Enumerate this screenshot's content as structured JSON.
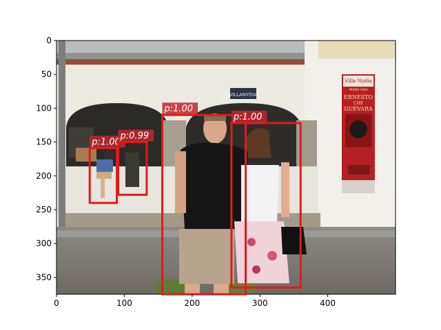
{
  "figure": {
    "image_size": [
      500,
      375
    ],
    "photo_description_tokens": {
      "building_sign": "VILLANYDIA",
      "poster_title": "Villa Nydia",
      "poster_line1": "MUSEO CASA",
      "poster_line2": "de",
      "poster_line3": "ERNESTO",
      "poster_line4": "CHE",
      "poster_line5": "GUEVARA"
    },
    "x_ticks": [
      "0",
      "100",
      "200",
      "300",
      "400"
    ],
    "y_ticks": [
      "0",
      "50",
      "100",
      "150",
      "200",
      "250",
      "300",
      "350"
    ]
  },
  "detections": [
    {
      "label": "p:1.00",
      "bbox_data": [
        49,
        159,
        89,
        240
      ]
    },
    {
      "label": "p:0.99",
      "bbox_data": [
        91,
        150,
        133,
        228
      ]
    },
    {
      "label": "p:1.00",
      "bbox_data": [
        156,
        110,
        279,
        375
      ]
    },
    {
      "label": "p:1.00",
      "bbox_data": [
        258,
        122,
        360,
        365
      ]
    }
  ],
  "colors": {
    "box": "#e01b1b",
    "label_bg": "#c1272d",
    "label_text": "#ffffff"
  }
}
